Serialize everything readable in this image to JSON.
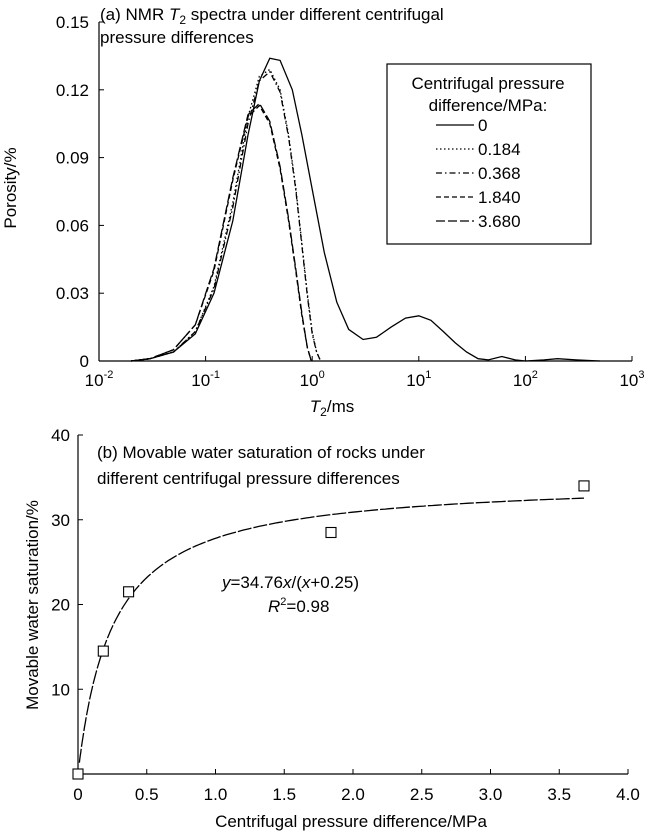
{
  "chart_data": [
    {
      "type": "line",
      "title_parts": {
        "prefix": "(a) NMR ",
        "t": "T",
        "sub": "2",
        "rest": " spectra under different centrifugal",
        "line2": "pressure differences"
      },
      "xlabel": {
        "t": "T",
        "sub": "2",
        "rest": "/ms"
      },
      "ylabel": "Porosity/%",
      "x_scale": "log",
      "xlim": [
        0.01,
        1000
      ],
      "ylim": [
        0,
        0.15
      ],
      "x_ticks": [
        {
          "base": "10",
          "exp": "-2"
        },
        {
          "base": "10",
          "exp": "-1"
        },
        {
          "base": "10",
          "exp": "0"
        },
        {
          "base": "10",
          "exp": "1"
        },
        {
          "base": "10",
          "exp": "2"
        },
        {
          "base": "10",
          "exp": "3"
        }
      ],
      "y_ticks": [
        "0",
        "0.03",
        "0.06",
        "0.09",
        "0.12",
        "0.15"
      ],
      "y_tick_values": [
        0,
        0.03,
        0.06,
        0.09,
        0.12,
        0.15
      ],
      "legend": {
        "title_line1": "Centrifugal pressure",
        "title_line2": "difference/MPa:",
        "entries": [
          "0",
          "0.184",
          "0.368",
          "1.840",
          "3.680"
        ],
        "placement": "top-right"
      },
      "series": [
        {
          "name": "0",
          "dash": "solid",
          "x": [
            0.02,
            0.03,
            0.05,
            0.08,
            0.12,
            0.18,
            0.25,
            0.32,
            0.4,
            0.5,
            0.65,
            0.8,
            1.0,
            1.3,
            1.7,
            2.2,
            3.0,
            4.0,
            5.5,
            7.5,
            10,
            13,
            17,
            22,
            28,
            36,
            45,
            60,
            80,
            100,
            150,
            200,
            300,
            500
          ],
          "y": [
            0,
            0.001,
            0.004,
            0.012,
            0.03,
            0.062,
            0.1,
            0.124,
            0.134,
            0.133,
            0.12,
            0.1,
            0.076,
            0.048,
            0.026,
            0.014,
            0.0095,
            0.0105,
            0.015,
            0.019,
            0.02,
            0.018,
            0.013,
            0.008,
            0.004,
            0.001,
            0.0005,
            0.002,
            0.0005,
            0,
            0.0005,
            0.001,
            0.0005,
            0
          ]
        },
        {
          "name": "0.184",
          "dash": "dotted",
          "x": [
            0.02,
            0.03,
            0.05,
            0.08,
            0.12,
            0.18,
            0.25,
            0.32,
            0.4,
            0.5,
            0.6,
            0.7,
            0.8,
            0.9,
            1.0,
            1.1,
            1.2
          ],
          "y": [
            0,
            0.001,
            0.004,
            0.013,
            0.033,
            0.07,
            0.108,
            0.126,
            0.129,
            0.12,
            0.1,
            0.077,
            0.052,
            0.03,
            0.013,
            0.004,
            0
          ]
        },
        {
          "name": "0.368",
          "dash": "dash-dot",
          "x": [
            0.02,
            0.03,
            0.05,
            0.08,
            0.12,
            0.18,
            0.25,
            0.32,
            0.4,
            0.5,
            0.6,
            0.7,
            0.8,
            0.9,
            1.0,
            1.1,
            1.2
          ],
          "y": [
            0,
            0.001,
            0.004,
            0.013,
            0.032,
            0.068,
            0.105,
            0.124,
            0.128,
            0.119,
            0.099,
            0.076,
            0.051,
            0.029,
            0.012,
            0.004,
            0
          ]
        },
        {
          "name": "1.840",
          "dash": "dashed",
          "x": [
            0.02,
            0.03,
            0.05,
            0.08,
            0.12,
            0.18,
            0.25,
            0.32,
            0.4,
            0.5,
            0.6,
            0.7,
            0.8,
            0.9,
            0.98
          ],
          "y": [
            0,
            0.001,
            0.005,
            0.016,
            0.04,
            0.08,
            0.108,
            0.113,
            0.105,
            0.085,
            0.062,
            0.04,
            0.02,
            0.006,
            0
          ]
        },
        {
          "name": "3.680",
          "dash": "long-dash",
          "x": [
            0.02,
            0.03,
            0.05,
            0.08,
            0.12,
            0.18,
            0.25,
            0.32,
            0.4,
            0.5,
            0.6,
            0.7,
            0.8,
            0.9,
            0.98
          ],
          "y": [
            0,
            0.001,
            0.005,
            0.016,
            0.041,
            0.081,
            0.109,
            0.114,
            0.106,
            0.086,
            0.063,
            0.041,
            0.021,
            0.006,
            0
          ]
        }
      ]
    },
    {
      "type": "scatter",
      "title_line1": "(b) Movable water saturation of rocks under",
      "title_line2": "different centrifugal pressure differences",
      "xlabel": "Centrifugal pressure difference/MPa",
      "ylabel": "Movable water saturation/%",
      "xlim": [
        0,
        4.0
      ],
      "ylim": [
        0,
        40
      ],
      "x_ticks": [
        "0",
        "0.5",
        "1.0",
        "1.5",
        "2.0",
        "2.5",
        "3.0",
        "3.5",
        "4.0"
      ],
      "x_tick_values": [
        0,
        0.5,
        1.0,
        1.5,
        2.0,
        2.5,
        3.0,
        3.5,
        4.0
      ],
      "y_ticks": [
        "10",
        "20",
        "30",
        "40"
      ],
      "y_tick_values": [
        10,
        20,
        30,
        40
      ],
      "points": [
        {
          "x": 0,
          "y": 0
        },
        {
          "x": 0.184,
          "y": 14.5
        },
        {
          "x": 0.368,
          "y": 21.5
        },
        {
          "x": 1.84,
          "y": 28.5
        },
        {
          "x": 3.68,
          "y": 34
        }
      ],
      "fit": {
        "a": 34.76,
        "b": 0.25,
        "x_range": [
          0.01,
          3.68
        ]
      },
      "equation": {
        "y": "y",
        "eq": "=34.76",
        "x1": "x",
        "mid": "/(",
        "x2": "x",
        "end": "+0.25)"
      },
      "r2": {
        "r": "R",
        "sup": "2",
        "val": "=0.98"
      }
    }
  ]
}
